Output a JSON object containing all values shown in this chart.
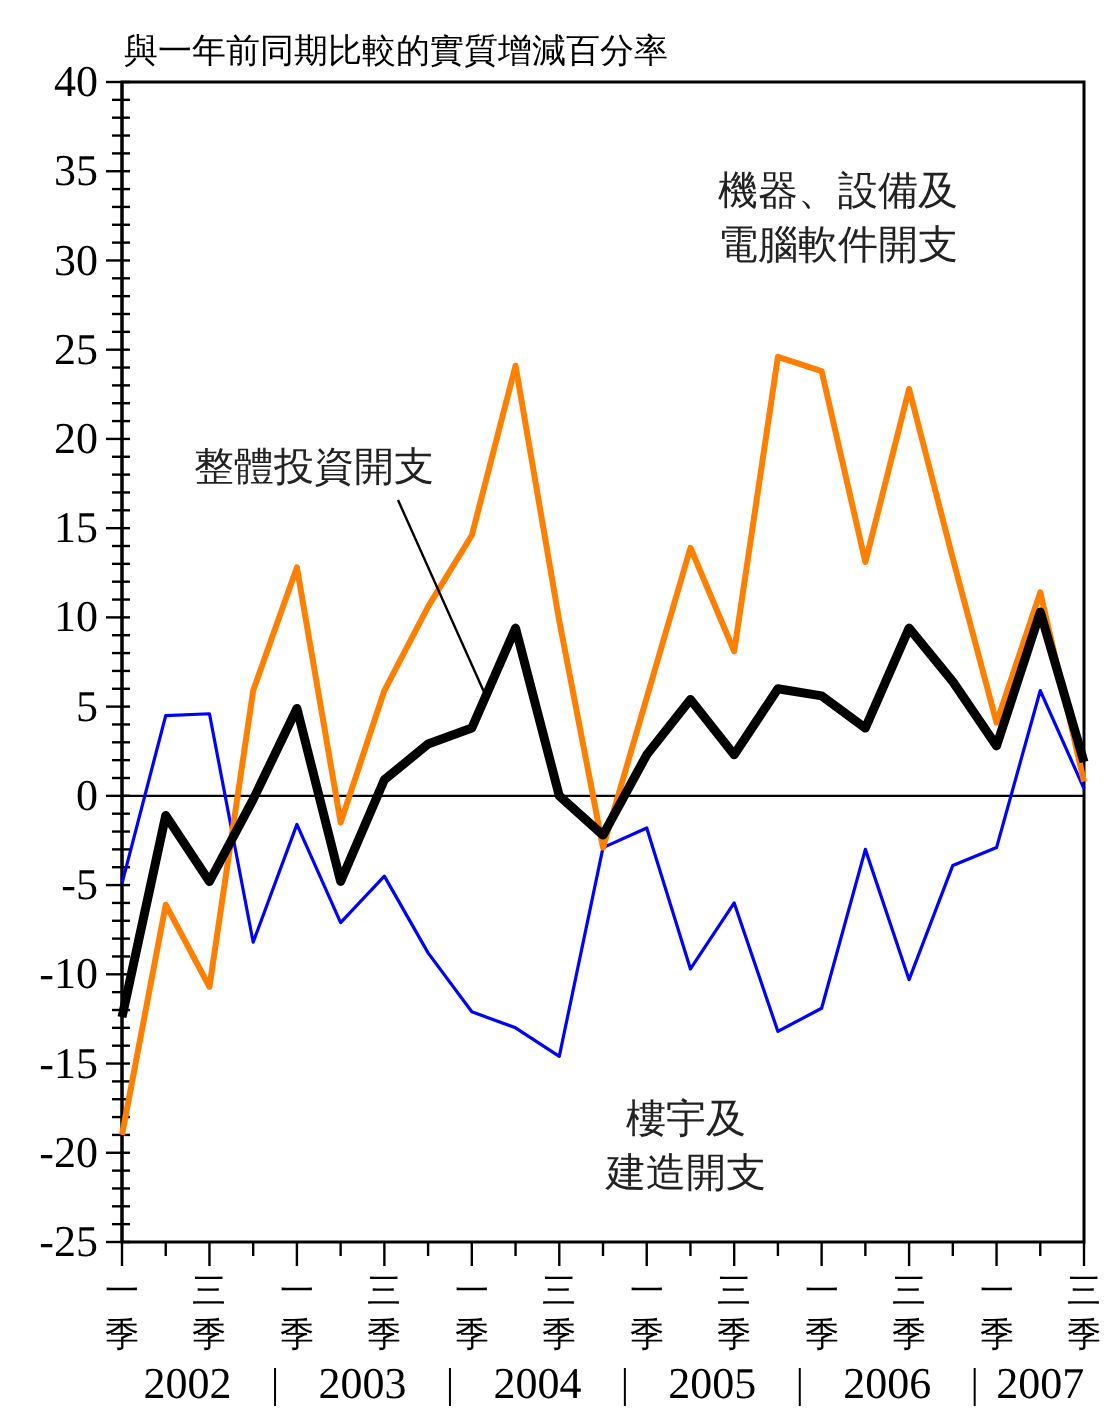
{
  "chart_data": {
    "type": "line",
    "title": "與一年前同期比較的實質增減百分率",
    "categories": [
      "一季",
      null,
      "三季",
      null,
      "一季",
      null,
      "三季",
      null,
      "一季",
      null,
      "三季",
      null,
      "一季",
      null,
      "三季",
      null,
      "一季",
      null,
      "三季",
      null,
      "一季",
      null,
      "三季"
    ],
    "series": [
      {
        "name": "樓宇及建造開支",
        "color": "#0000ff",
        "values": [
          -4.9,
          4.5,
          4.6,
          -8.2,
          -1.6,
          -7.1,
          -4.5,
          -8.8,
          -12.1,
          -13.0,
          -14.6,
          -2.9,
          -1.8,
          -9.7,
          -6.0,
          -13.2,
          -11.9,
          -3.0,
          -10.3,
          -3.9,
          -2.9,
          5.9,
          0.4
        ]
      },
      {
        "name": "機器、設備及電腦軟件開支",
        "color": "#ff8000",
        "values": [
          -19.0,
          -6.1,
          -10.7,
          5.9,
          12.8,
          -1.5,
          5.9,
          10.6,
          14.6,
          24.1,
          9.8,
          -2.9,
          5.5,
          13.9,
          8.1,
          24.6,
          23.8,
          13.1,
          22.8,
          13.3,
          4.1,
          11.4,
          0.8
        ]
      },
      {
        "name": "整體投資開支",
        "color": "#000000",
        "values": [
          -12.4,
          -1.1,
          -4.8,
          -0.2,
          4.9,
          -4.8,
          0.9,
          2.9,
          3.8,
          9.4,
          0.0,
          -2.2,
          2.3,
          5.4,
          2.3,
          6.0,
          5.6,
          3.8,
          9.4,
          6.4,
          2.8,
          10.3,
          1.9
        ]
      }
    ],
    "ylim": [
      -25,
      40
    ],
    "yticks": [
      -25,
      {
        "value": -24,
        "label": null
      },
      {
        "value": -23,
        "label": null
      },
      {
        "value": -22,
        "label": null
      },
      {
        "value": -21,
        "label": null
      },
      -20,
      {
        "value": -19,
        "label": null
      },
      {
        "value": -18,
        "label": null
      },
      {
        "value": -17,
        "label": null
      },
      {
        "value": -16,
        "label": null
      },
      -15,
      {
        "value": -14,
        "label": null
      },
      {
        "value": -13,
        "label": null
      },
      {
        "value": -12,
        "label": null
      },
      {
        "value": -11,
        "label": null
      },
      -10,
      {
        "value": -9,
        "label": null
      },
      {
        "value": -8,
        "label": null
      },
      {
        "value": -7,
        "label": null
      },
      {
        "value": -6,
        "label": null
      },
      -5,
      {
        "value": -4,
        "label": null
      },
      {
        "value": -3,
        "label": null
      },
      {
        "value": -2,
        "label": null
      },
      {
        "value": -1,
        "label": null
      },
      0,
      {
        "value": 1,
        "label": null
      },
      {
        "value": 2,
        "label": null
      },
      {
        "value": 3,
        "label": null
      },
      {
        "value": 4,
        "label": null
      },
      5,
      {
        "value": 6,
        "label": null
      },
      {
        "value": 7,
        "label": null
      },
      {
        "value": 8,
        "label": null
      },
      {
        "value": 9,
        "label": null
      },
      10,
      {
        "value": 11,
        "label": null
      },
      {
        "value": 12,
        "label": null
      },
      {
        "value": 13,
        "label": null
      },
      {
        "value": 14,
        "label": null
      },
      15,
      {
        "value": 16,
        "label": null
      },
      {
        "value": 17,
        "label": null
      },
      {
        "value": 18,
        "label": null
      },
      {
        "value": 19,
        "label": null
      },
      20,
      {
        "value": 21,
        "label": null
      },
      {
        "value": 22,
        "label": null
      },
      {
        "value": 23,
        "label": null
      },
      {
        "value": 24,
        "label": null
      },
      25,
      {
        "value": 26,
        "label": null
      },
      {
        "value": 27,
        "label": null
      },
      {
        "value": 28,
        "label": null
      },
      {
        "value": 29,
        "label": null
      },
      30,
      {
        "value": 31,
        "label": null
      },
      {
        "value": 32,
        "label": null
      },
      {
        "value": 33,
        "label": null
      },
      {
        "value": 34,
        "label": null
      },
      35,
      {
        "value": 36,
        "label": null
      },
      {
        "value": 37,
        "label": null
      },
      {
        "value": 38,
        "label": null
      },
      {
        "value": 39,
        "label": null
      },
      40
    ],
    "ref_lines": [
      {
        "axis": "y",
        "value": 0,
        "color": "#000000"
      }
    ],
    "annotations": [
      "2002",
      "2003",
      "2004",
      "2005",
      "2006",
      "2007"
    ],
    "marker": "none",
    "line_style": "solid"
  }
}
